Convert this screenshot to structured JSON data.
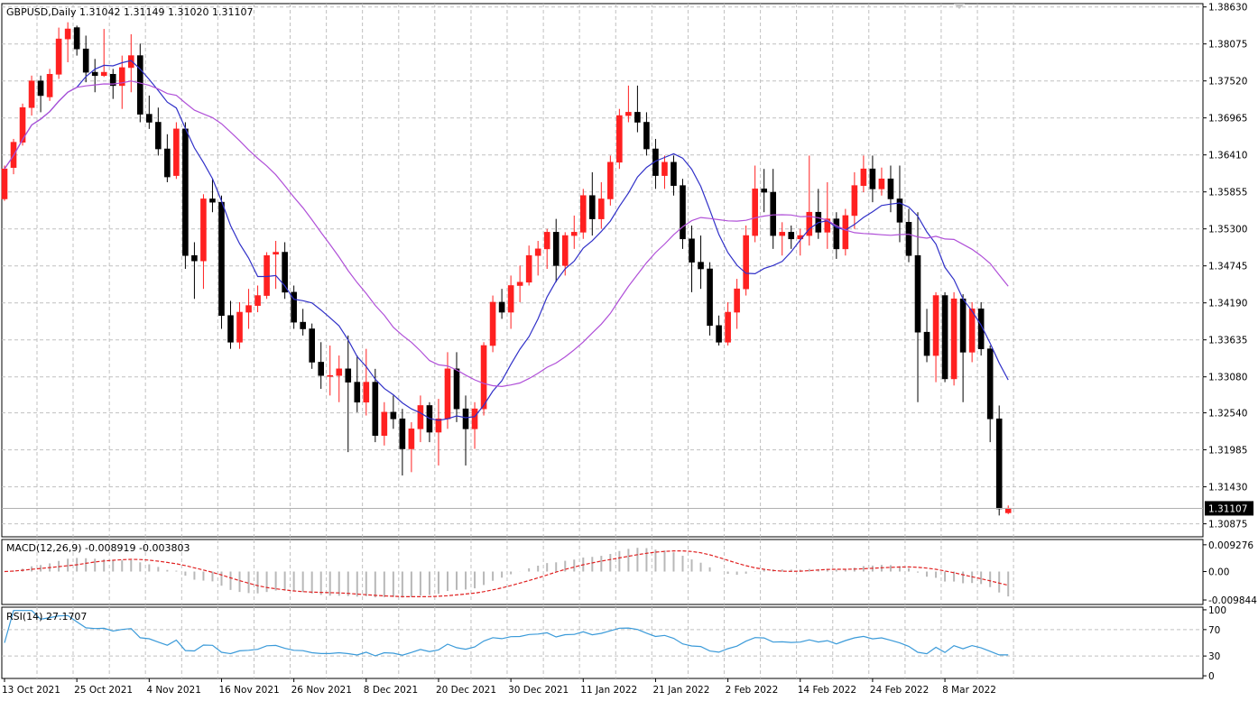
{
  "chart_data": {
    "type": "candlestick",
    "title": "GBPUSD,Daily  1.31042 1.31149 1.31020 1.31107",
    "symbol": "GBPUSD",
    "timeframe": "Daily",
    "ohlc_readout": [
      "1.31042",
      "1.31149",
      "1.31020",
      "1.31107"
    ],
    "current_price": "1.31107",
    "price_axis": {
      "ylim": [
        1.3068,
        1.3868
      ],
      "ticks": [
        "1.38630",
        "1.38075",
        "1.37520",
        "1.36965",
        "1.36410",
        "1.35855",
        "1.35300",
        "1.34745",
        "1.34190",
        "1.33635",
        "1.33080",
        "1.32540",
        "1.31985",
        "1.31430",
        "1.30875"
      ]
    },
    "date_labels": [
      "13 Oct 2021",
      "25 Oct 2021",
      "4 Nov 2021",
      "16 Nov 2021",
      "26 Nov 2021",
      "8 Dec 2021",
      "20 Dec 2021",
      "30 Dec 2021",
      "11 Jan 2022",
      "21 Jan 2022",
      "2 Feb 2022",
      "14 Feb 2022",
      "24 Feb 2022",
      "8 Mar 2022"
    ],
    "date_label_index": [
      0,
      8,
      16,
      24,
      32,
      40,
      48,
      56,
      64,
      72,
      80,
      88,
      96,
      104
    ],
    "colors": {
      "up": "#ff2020",
      "down": "#000000",
      "ma_fast": "#3030c8",
      "ma_slow": "#b050d8",
      "macd_signal": "#e02020",
      "macd_hist": "#b8b8b8",
      "rsi": "#3a9ad9",
      "grid": "#c0c0c0"
    },
    "candles": [
      [
        1.3575,
        1.3625,
        1.3572,
        1.362
      ],
      [
        1.3622,
        1.3665,
        1.3612,
        1.366
      ],
      [
        1.366,
        1.3718,
        1.3655,
        1.3712
      ],
      [
        1.3712,
        1.376,
        1.37,
        1.3752
      ],
      [
        1.3752,
        1.376,
        1.3705,
        1.373
      ],
      [
        1.3728,
        1.377,
        1.3722,
        1.3762
      ],
      [
        1.3762,
        1.3832,
        1.3755,
        1.3815
      ],
      [
        1.3815,
        1.384,
        1.378,
        1.383
      ],
      [
        1.3832,
        1.3835,
        1.379,
        1.38
      ],
      [
        1.38,
        1.382,
        1.375,
        1.3765
      ],
      [
        1.3765,
        1.3785,
        1.3735,
        1.376
      ],
      [
        1.376,
        1.383,
        1.3758,
        1.3765
      ],
      [
        1.3762,
        1.377,
        1.3725,
        1.3745
      ],
      [
        1.3745,
        1.379,
        1.371,
        1.3772
      ],
      [
        1.3772,
        1.3822,
        1.3735,
        1.379
      ],
      [
        1.379,
        1.3808,
        1.369,
        1.3702
      ],
      [
        1.3702,
        1.373,
        1.368,
        1.369
      ],
      [
        1.369,
        1.3712,
        1.364,
        1.365
      ],
      [
        1.365,
        1.3672,
        1.36,
        1.3608
      ],
      [
        1.361,
        1.369,
        1.3605,
        1.368
      ],
      [
        1.368,
        1.369,
        1.347,
        1.349
      ],
      [
        1.349,
        1.351,
        1.3425,
        1.3482
      ],
      [
        1.3482,
        1.3582,
        1.344,
        1.3575
      ],
      [
        1.3575,
        1.3605,
        1.3555,
        1.357
      ],
      [
        1.357,
        1.358,
        1.338,
        1.34
      ],
      [
        1.34,
        1.3422,
        1.335,
        1.336
      ],
      [
        1.336,
        1.342,
        1.335,
        1.3405
      ],
      [
        1.3405,
        1.344,
        1.338,
        1.3415
      ],
      [
        1.3415,
        1.3445,
        1.3405,
        1.343
      ],
      [
        1.343,
        1.3495,
        1.3425,
        1.349
      ],
      [
        1.3492,
        1.3512,
        1.344,
        1.3495
      ],
      [
        1.3495,
        1.351,
        1.3425,
        1.3435
      ],
      [
        1.3435,
        1.3445,
        1.338,
        1.339
      ],
      [
        1.339,
        1.341,
        1.337,
        1.338
      ],
      [
        1.338,
        1.3388,
        1.332,
        1.333
      ],
      [
        1.333,
        1.336,
        1.329,
        1.331
      ],
      [
        1.331,
        1.3355,
        1.328,
        1.331
      ],
      [
        1.331,
        1.334,
        1.327,
        1.332
      ],
      [
        1.332,
        1.337,
        1.3195,
        1.33
      ],
      [
        1.33,
        1.334,
        1.3255,
        1.327
      ],
      [
        1.327,
        1.335,
        1.325,
        1.33
      ],
      [
        1.33,
        1.332,
        1.321,
        1.322
      ],
      [
        1.322,
        1.327,
        1.3205,
        1.3255
      ],
      [
        1.3255,
        1.328,
        1.323,
        1.3245
      ],
      [
        1.3245,
        1.326,
        1.316,
        1.32
      ],
      [
        1.32,
        1.324,
        1.3165,
        1.323
      ],
      [
        1.323,
        1.328,
        1.321,
        1.3265
      ],
      [
        1.3265,
        1.327,
        1.321,
        1.3225
      ],
      [
        1.3225,
        1.3275,
        1.3175,
        1.3245
      ],
      [
        1.3245,
        1.3345,
        1.323,
        1.332
      ],
      [
        1.332,
        1.3345,
        1.324,
        1.326
      ],
      [
        1.326,
        1.328,
        1.3175,
        1.323
      ],
      [
        1.323,
        1.327,
        1.32,
        1.326
      ],
      [
        1.326,
        1.336,
        1.325,
        1.3355
      ],
      [
        1.3355,
        1.343,
        1.3345,
        1.342
      ],
      [
        1.342,
        1.344,
        1.3395,
        1.3405
      ],
      [
        1.3405,
        1.346,
        1.338,
        1.3445
      ],
      [
        1.3445,
        1.3475,
        1.342,
        1.345
      ],
      [
        1.345,
        1.3505,
        1.3445,
        1.349
      ],
      [
        1.349,
        1.3512,
        1.346,
        1.35
      ],
      [
        1.35,
        1.353,
        1.347,
        1.3525
      ],
      [
        1.3525,
        1.3545,
        1.345,
        1.3475
      ],
      [
        1.3475,
        1.3525,
        1.346,
        1.352
      ],
      [
        1.352,
        1.355,
        1.35,
        1.3525
      ],
      [
        1.3525,
        1.359,
        1.3515,
        1.358
      ],
      [
        1.358,
        1.3615,
        1.352,
        1.3545
      ],
      [
        1.3545,
        1.36,
        1.353,
        1.3575
      ],
      [
        1.3575,
        1.364,
        1.3565,
        1.363
      ],
      [
        1.363,
        1.371,
        1.362,
        1.37
      ],
      [
        1.37,
        1.3745,
        1.369,
        1.3705
      ],
      [
        1.3705,
        1.3745,
        1.3675,
        1.369
      ],
      [
        1.369,
        1.3705,
        1.364,
        1.365
      ],
      [
        1.365,
        1.3665,
        1.359,
        1.361
      ],
      [
        1.361,
        1.364,
        1.359,
        1.363
      ],
      [
        1.363,
        1.364,
        1.358,
        1.3595
      ],
      [
        1.3595,
        1.3605,
        1.35,
        1.3515
      ],
      [
        1.3515,
        1.3535,
        1.3435,
        1.348
      ],
      [
        1.348,
        1.352,
        1.344,
        1.347
      ],
      [
        1.347,
        1.348,
        1.337,
        1.3385
      ],
      [
        1.3385,
        1.34,
        1.3355,
        1.336
      ],
      [
        1.336,
        1.342,
        1.3355,
        1.3405
      ],
      [
        1.3405,
        1.3455,
        1.338,
        1.344
      ],
      [
        1.344,
        1.3535,
        1.343,
        1.352
      ],
      [
        1.352,
        1.3625,
        1.351,
        1.359
      ],
      [
        1.359,
        1.362,
        1.3555,
        1.3585
      ],
      [
        1.3585,
        1.362,
        1.35,
        1.352
      ],
      [
        1.352,
        1.354,
        1.349,
        1.3525
      ],
      [
        1.3525,
        1.3535,
        1.35,
        1.3515
      ],
      [
        1.3515,
        1.353,
        1.349,
        1.352
      ],
      [
        1.352,
        1.364,
        1.3505,
        1.3555
      ],
      [
        1.3555,
        1.359,
        1.3515,
        1.3525
      ],
      [
        1.3525,
        1.36,
        1.35,
        1.3545
      ],
      [
        1.3545,
        1.3555,
        1.3485,
        1.35
      ],
      [
        1.35,
        1.356,
        1.349,
        1.355
      ],
      [
        1.355,
        1.3615,
        1.353,
        1.3595
      ],
      [
        1.3595,
        1.364,
        1.3585,
        1.362
      ],
      [
        1.362,
        1.364,
        1.357,
        1.359
      ],
      [
        1.359,
        1.3622,
        1.358,
        1.3605
      ],
      [
        1.3605,
        1.3625,
        1.3555,
        1.3575
      ],
      [
        1.3575,
        1.3625,
        1.351,
        1.354
      ],
      [
        1.354,
        1.356,
        1.348,
        1.349
      ],
      [
        1.349,
        1.3555,
        1.327,
        1.3375
      ],
      [
        1.3375,
        1.341,
        1.333,
        1.334
      ],
      [
        1.334,
        1.3435,
        1.33,
        1.343
      ],
      [
        1.343,
        1.3435,
        1.33,
        1.3305
      ],
      [
        1.3305,
        1.3435,
        1.3295,
        1.3425
      ],
      [
        1.3425,
        1.3432,
        1.327,
        1.3345
      ],
      [
        1.3345,
        1.342,
        1.333,
        1.341
      ],
      [
        1.341,
        1.342,
        1.334,
        1.335
      ],
      [
        1.335,
        1.3355,
        1.321,
        1.3245
      ],
      [
        1.3245,
        1.3265,
        1.31,
        1.311
      ],
      [
        1.3104,
        1.3115,
        1.3102,
        1.3111
      ]
    ],
    "ma_fast_label": "",
    "ma_slow_label": "",
    "macd": {
      "label": "MACD(12,26,9) -0.008919 -0.003803",
      "ticks": [
        "0.009276",
        "0.00",
        "-0.009844"
      ],
      "ylim": [
        -0.0114,
        0.0111
      ]
    },
    "rsi": {
      "label": "RSI(14) 27.1707",
      "ticks": [
        "100",
        "70",
        "30",
        "0"
      ],
      "ylim": [
        -4,
        104
      ]
    }
  }
}
